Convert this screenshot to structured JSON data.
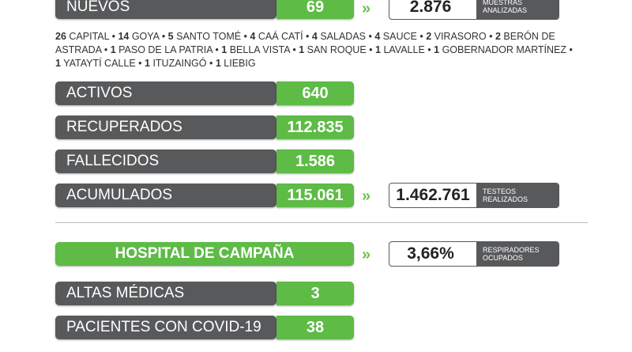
{
  "new_cases": {
    "label": "NUEVOS",
    "value": "69"
  },
  "samples": {
    "value": "2.876",
    "caption_line1": "MUESTRAS",
    "caption_line2": "ANALIZADAS"
  },
  "localities": [
    {
      "count": "26",
      "name": "CAPITAL"
    },
    {
      "count": "14",
      "name": "GOYA"
    },
    {
      "count": "5",
      "name": "SANTO TOMÉ"
    },
    {
      "count": "4",
      "name": "CAÁ CATÍ"
    },
    {
      "count": "4",
      "name": "SALADAS"
    },
    {
      "count": "4",
      "name": "SAUCE"
    },
    {
      "count": "2",
      "name": "VIRASORO"
    },
    {
      "count": "2",
      "name": "BERÓN DE ASTRADA"
    },
    {
      "count": "1",
      "name": "PASO DE LA PATRIA"
    },
    {
      "count": "1",
      "name": "BELLA VISTA"
    },
    {
      "count": "1",
      "name": "SAN ROQUE"
    },
    {
      "count": "1",
      "name": "LAVALLE"
    },
    {
      "count": "1",
      "name": "GOBERNADOR MARTÍNEZ"
    },
    {
      "count": "1",
      "name": "YATAYTÍ CALLE"
    },
    {
      "count": "1",
      "name": "ITUZAINGÓ"
    },
    {
      "count": "1",
      "name": "LIEBIG"
    }
  ],
  "stats": [
    {
      "label": "ACTIVOS",
      "value": "640"
    },
    {
      "label": "RECUPERADOS",
      "value": "112.835"
    },
    {
      "label": "FALLECIDOS",
      "value": "1.586"
    },
    {
      "label": "ACUMULADOS",
      "value": "115.061"
    }
  ],
  "tests": {
    "value": "1.462.761",
    "caption_line1": "TESTEOS",
    "caption_line2": "REALIZADOS"
  },
  "hospital": {
    "title": "HOSPITAL DE CAMPAÑA",
    "respirators": {
      "value": "3,66%",
      "caption_line1": "RESPIRADORES",
      "caption_line2": "OCUPADOS"
    },
    "rows": [
      {
        "label": "ALTAS MÉDICAS",
        "value": "3"
      },
      {
        "label": "PACIENTES CON COVID-19",
        "value": "38"
      }
    ]
  },
  "colors": {
    "gray": "#58595b",
    "green": "#5dbb46"
  },
  "icons": {
    "arrow": "»"
  }
}
